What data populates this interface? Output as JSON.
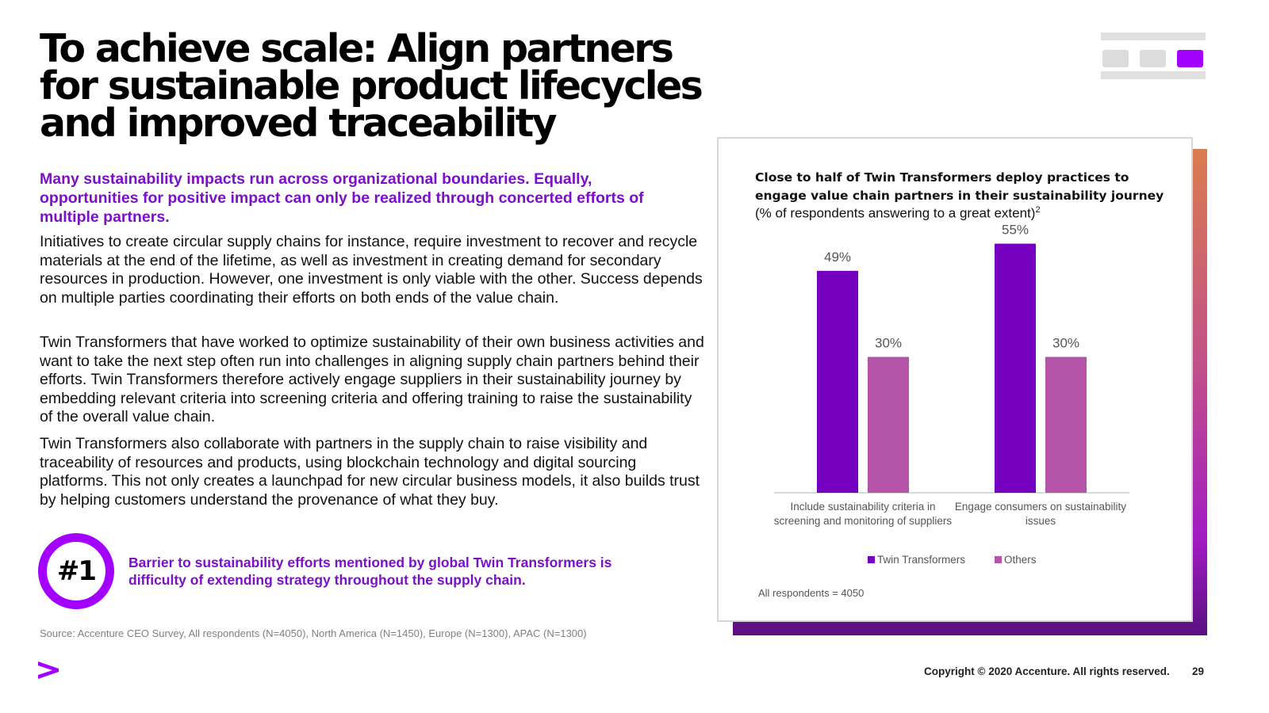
{
  "title_lines": [
    "To achieve scale: Align partners",
    "for sustainable product lifecycles",
    "and improved traceability"
  ],
  "intro": "Many sustainability impacts run across organizational boundaries. Equally, opportunities for positive impact can only be realized through concerted efforts of multiple partners.",
  "paragraphs": [
    "Initiatives to create circular supply chains for instance, require investment to recover and recycle materials at the end of the lifetime, as well as investment in creating demand for secondary resources in production. However, one  investment is only viable with the other. Success depends on multiple parties coordinating their efforts on both ends of the value chain.",
    "Twin Transformers that have worked to optimize sustainability of their own business activities and want to take the next step often run into challenges in aligning supply chain partners behind their efforts. Twin Transformers therefore actively engage suppliers in their sustainability journey by embedding relevant criteria into screening criteria and offering training to raise the sustainability of the overall value chain.",
    "Twin Transformers also collaborate with partners in the supply chain to raise visibility and traceability of resources and products, using blockchain technology and digital sourcing platforms. This not only creates a launchpad for new circular business models, it also builds trust by helping customers understand the provenance of what they buy."
  ],
  "badge": "#1",
  "barrier_text": "Barrier to sustainability efforts mentioned by global Twin Transformers is difficulty of extending strategy throughout the supply chain.",
  "source": "Source: Accenture CEO Survey, All respondents (N=4050), North America (N=1450), Europe (N=1300), APAC (N=1300)",
  "copyright": "Copyright © 2020 Accenture. All rights reserved.",
  "page_number": "29",
  "colors": {
    "accent": "#a200ff",
    "purple_text": "#7b10c8",
    "series_primary": "#7500c0",
    "series_secondary": "#b455aa"
  },
  "icons": {
    "logo": "accenture-chevron-icon",
    "nav": "slide-nav-icon"
  },
  "chart_data": {
    "type": "bar",
    "title": "Close to half of Twin Transformers deploy practices to engage value chain partners in their sustainability journey",
    "subtitle": "(% of respondents answering to a great extent)",
    "subtitle_sup": "2",
    "categories": [
      "Include sustainability criteria in screening and monitoring of suppliers",
      "Engage consumers on sustainability issues"
    ],
    "series": [
      {
        "name": "Twin Transformers",
        "values": [
          49,
          55
        ],
        "color": "#7500c0"
      },
      {
        "name": "Others",
        "values": [
          30,
          30
        ],
        "color": "#b455aa"
      }
    ],
    "value_suffix": "%",
    "ylim": [
      0,
      60
    ],
    "grid": false,
    "legend": "bottom",
    "note": "All respondents = 4050"
  }
}
